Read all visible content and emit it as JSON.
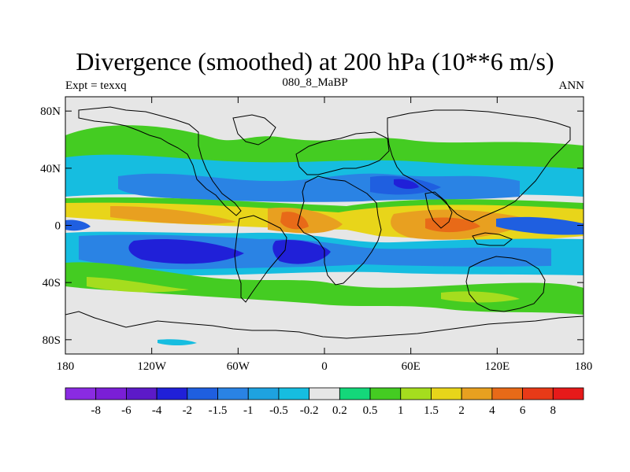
{
  "header": {
    "title": "Divergence (smoothed) at 200 hPa (10**6 m/s)",
    "left_string": "Expt = texxq",
    "center_string": "080_8_MaBP",
    "right_string": "ANN"
  },
  "map": {
    "lat_ticks": [
      {
        "value": 80,
        "label": "80N"
      },
      {
        "value": 40,
        "label": "40N"
      },
      {
        "value": 0,
        "label": "0"
      },
      {
        "value": -40,
        "label": "40S"
      },
      {
        "value": -80,
        "label": "80S"
      }
    ],
    "lon_ticks": [
      {
        "value": -180,
        "label": "180"
      },
      {
        "value": -120,
        "label": "120W"
      },
      {
        "value": -60,
        "label": "60W"
      },
      {
        "value": 0,
        "label": "0"
      },
      {
        "value": 60,
        "label": "60E"
      },
      {
        "value": 120,
        "label": "120E"
      },
      {
        "value": 180,
        "label": "180"
      }
    ],
    "lon_range": [
      -180,
      180
    ],
    "lat_range": [
      -90,
      90
    ],
    "fill_color_neutral": "#e6e6e6"
  },
  "colorbar": {
    "labels": [
      "-8",
      "-6",
      "-4",
      "-2",
      "-1.5",
      "-1",
      "-0.5",
      "-0.2",
      "0.2",
      "0.5",
      "1",
      "1.5",
      "2",
      "4",
      "6",
      "8"
    ],
    "colors": [
      "#8a2be2",
      "#7a1fd6",
      "#5c1ac8",
      "#2020d8",
      "#1f5fe0",
      "#2a83e4",
      "#1ea2e0",
      "#16bde0",
      "#e6e6e6",
      "#14d77a",
      "#44cc22",
      "#a5dd1e",
      "#e8d51a",
      "#e8a020",
      "#e86a18",
      "#e83a18",
      "#e61a1a"
    ]
  }
}
